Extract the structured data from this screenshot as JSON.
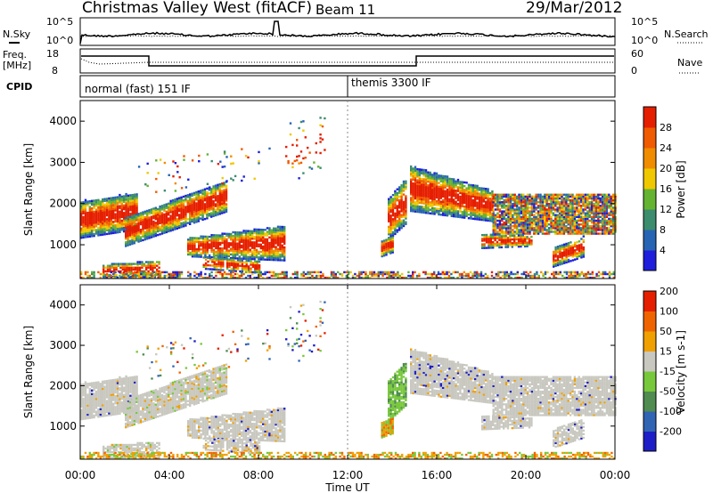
{
  "header": {
    "station": "Christmas Valley West (fitACF)",
    "beam": "Beam 11",
    "date": "29/Mar/2012"
  },
  "labels": {
    "nsky": "N.Sky",
    "nsearch": "N.Search",
    "freq_line1": "Freq.",
    "freq_line2": "[MHz]",
    "nave": "Nave",
    "cpid": "CPID",
    "xlabel": "Time UT"
  },
  "noise_panel": {
    "left_ticks": [
      "10^5",
      "10^0"
    ],
    "right_ticks": [
      "10^5",
      "10^0"
    ]
  },
  "freq_panel": {
    "left_ticks": [
      "18",
      "8"
    ],
    "right_ticks": [
      "60",
      "0"
    ]
  },
  "cpid_panel": {
    "segments": [
      {
        "name": "normal (fast) 151 IF",
        "start_hour": 0,
        "end_hour": 12
      },
      {
        "name": "themis 3300 IF",
        "start_hour": 12,
        "end_hour": 24
      }
    ]
  },
  "chart_data": [
    {
      "type": "heatmap",
      "title": "Power",
      "ylabel": "Slant Range [km]",
      "xlabel": "Time UT",
      "xlim_hours": [
        0,
        24
      ],
      "ylim": [
        180,
        4500
      ],
      "x_ticks": [
        "00:00",
        "04:00",
        "08:00",
        "12:00",
        "16:00",
        "20:00",
        "00:00"
      ],
      "y_ticks": [
        1000,
        2000,
        3000,
        4000
      ],
      "colorbar": {
        "label": "Power [dB]",
        "ticks": [
          "4",
          "8",
          "12",
          "16",
          "20",
          "24",
          "28"
        ],
        "colors": [
          "#1e1edc",
          "#2864b4",
          "#3c8c6e",
          "#64b432",
          "#f0c800",
          "#f08c00",
          "#f05a00",
          "#e61e00"
        ]
      }
    },
    {
      "type": "heatmap",
      "title": "Velocity",
      "ylabel": "Slant Range [km]",
      "xlabel": "Time UT",
      "xlim_hours": [
        0,
        24
      ],
      "ylim": [
        180,
        4500
      ],
      "x_ticks": [
        "00:00",
        "04:00",
        "08:00",
        "12:00",
        "16:00",
        "20:00",
        "00:00"
      ],
      "y_ticks": [
        1000,
        2000,
        3000,
        4000
      ],
      "colorbar": {
        "label": "Velocity [m s-1]",
        "ticks": [
          "200",
          "100",
          "50",
          "15",
          "-15",
          "-50",
          "-100",
          "-200"
        ],
        "colors": [
          "#1e1ec8",
          "#3264b4",
          "#508c50",
          "#78c83c",
          "#c8c8c0",
          "#f0a000",
          "#f06400",
          "#e61e00"
        ]
      }
    }
  ]
}
